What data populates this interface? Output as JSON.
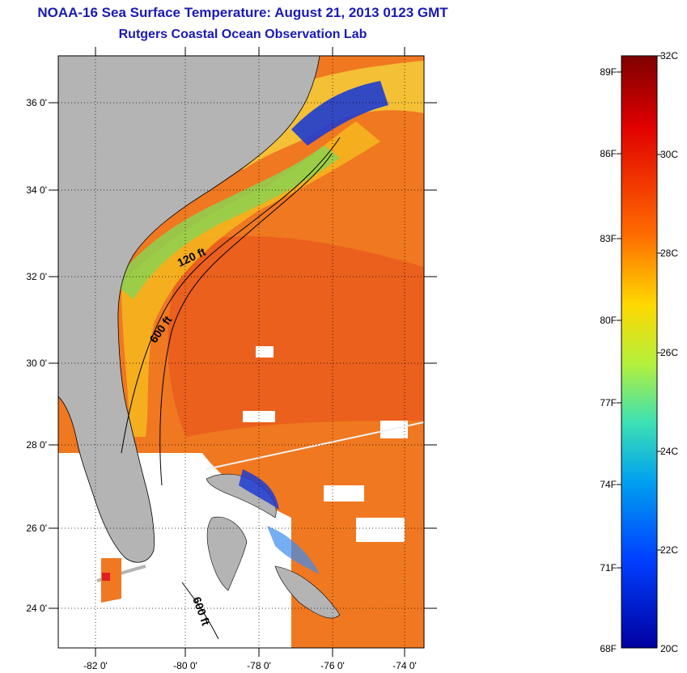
{
  "header": {
    "title": "NOAA-16 Sea Surface Temperature:  August 21, 2013 0123 GMT",
    "subtitle": "Rutgers Coastal Ocean Observation Lab"
  },
  "map": {
    "lat_labels": [
      "36 0'",
      "34 0'",
      "32 0'",
      "30 0'",
      "28 0'",
      "26 0'",
      "24 0'"
    ],
    "lon_labels": [
      "-82 0'",
      "-80 0'",
      "-78 0'",
      "-76 0'",
      "-74 0'"
    ],
    "isobath_labels": [
      "120 ft",
      "600 ft",
      "600 ft"
    ],
    "colors": {
      "land": "#b4b4b4",
      "cloud": "#ffffff",
      "warm": "#f07820",
      "hot": "#e04a18",
      "mid": "#f5b41e",
      "cool": "#8cd250",
      "cold": "#1e3cd2"
    }
  },
  "colorbar": {
    "fahrenheit_labels": [
      "89F",
      "86F",
      "83F",
      "80F",
      "77F",
      "74F",
      "71F",
      "68F"
    ],
    "celsius_labels": [
      "32C",
      "30C",
      "28C",
      "26C",
      "24C",
      "22C",
      "20C"
    ],
    "gradient_colors": [
      "#7f0000",
      "#e00000",
      "#ff6a00",
      "#ffd800",
      "#b4f03c",
      "#3ce0b4",
      "#00a0f0",
      "#0040ff",
      "#0000a0"
    ]
  }
}
